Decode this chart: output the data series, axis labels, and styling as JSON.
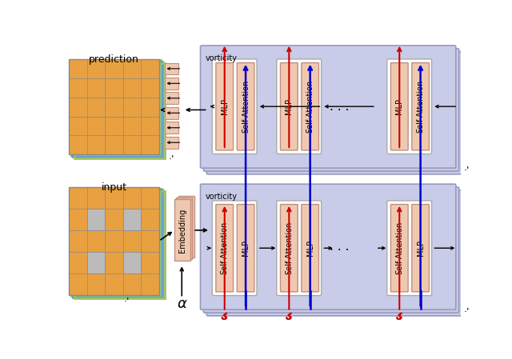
{
  "bg_color": "#ffffff",
  "panel_color": "#c8cce8",
  "panel_edge": "#9999bb",
  "block_color": "#f0c8b0",
  "block_edge": "#c09080",
  "mask_color": "#bbbbbb",
  "orange_color": "#e8a040",
  "blue_color": "#0000cc",
  "red_color": "#cc0000",
  "title_top": "vorticity",
  "title_bottom": "vorticity",
  "label_input": "input",
  "label_prediction": "prediction",
  "label_embedding": "Embedding",
  "label_sa": "Self-Attention",
  "label_mlp": "MLP",
  "alpha_label": "α",
  "layer_colors": [
    "#80c080",
    "#60a0d0",
    "#a0c060"
  ]
}
